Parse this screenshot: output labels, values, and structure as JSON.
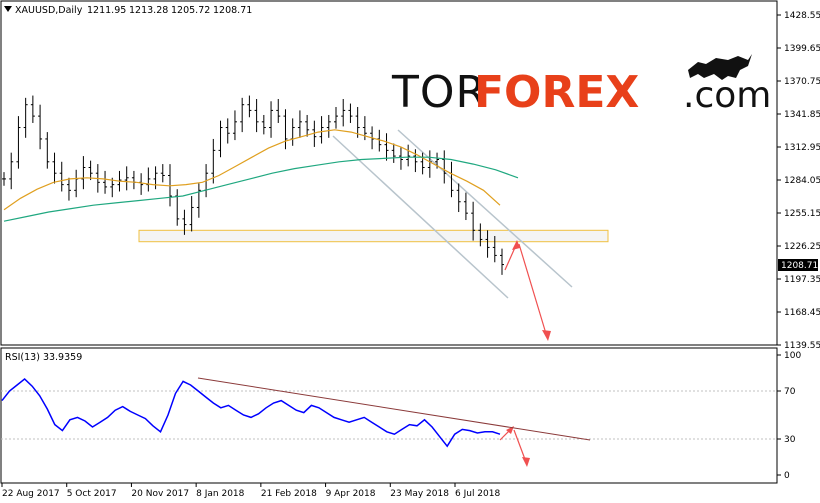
{
  "header": {
    "symbol": "XAUUSD,Daily",
    "open": "1211.95",
    "high": "1213.28",
    "low": "1205.72",
    "close": "1208.71"
  },
  "logo": {
    "part1": "TOR",
    "part2": "FOREX",
    "part3": ".com"
  },
  "current_price_tag": "1208.71",
  "colors": {
    "candles": "#000000",
    "ma_fast": "#e0a020",
    "ma_slow": "#20a880",
    "zone_fill": "#f4f4f4",
    "zone_border": "#f0c040",
    "channel": "#b8c4cc",
    "arrow": "#f05050",
    "rsi_line": "#0000ff",
    "rsi_trend": "#8b3a3a",
    "logo_accent": "#e8401a"
  },
  "chart_data": [
    {
      "type": "line",
      "candles_style": "ohlc-bars",
      "price_axis": [
        "1428.55",
        "1399.65",
        "1370.75",
        "1341.85",
        "1312.95",
        "1284.05",
        "1255.15",
        "1226.25",
        "1197.35",
        "1168.45",
        "1139.55"
      ],
      "x_axis": [
        "22 Aug 2017",
        "5 Oct 2017",
        "20 Nov 2017",
        "8 Jan 2018",
        "21 Feb 2018",
        "9 Apr 2018",
        "23 May 2018",
        "6 Jul 2018"
      ],
      "ylim": [
        1139.55,
        1428.55
      ],
      "price_series": [
        1285,
        1300,
        1330,
        1350,
        1340,
        1320,
        1300,
        1290,
        1280,
        1275,
        1285,
        1295,
        1290,
        1282,
        1278,
        1280,
        1284,
        1286,
        1282,
        1280,
        1285,
        1290,
        1288,
        1270,
        1250,
        1245,
        1260,
        1275,
        1290,
        1310,
        1330,
        1325,
        1335,
        1350,
        1345,
        1335,
        1330,
        1345,
        1340,
        1320,
        1330,
        1335,
        1328,
        1322,
        1330,
        1335,
        1340,
        1345,
        1340,
        1330,
        1325,
        1320,
        1315,
        1310,
        1305,
        1302,
        1305,
        1300,
        1295,
        1300,
        1302,
        1290,
        1275,
        1265,
        1255,
        1240,
        1232,
        1225,
        1218,
        1210
      ],
      "sma_fast": [
        1258,
        1268,
        1276,
        1282,
        1285,
        1286,
        1285,
        1283,
        1282,
        1280,
        1279,
        1280,
        1282,
        1288,
        1296,
        1304,
        1312,
        1318,
        1322,
        1326,
        1328,
        1326,
        1322,
        1318,
        1313,
        1306,
        1298,
        1290,
        1283,
        1275,
        1262
      ],
      "sma_slow": [
        1248,
        1252,
        1256,
        1259,
        1262,
        1264,
        1266,
        1268,
        1270,
        1275,
        1280,
        1285,
        1290,
        1294,
        1297,
        1300,
        1302,
        1303,
        1304,
        1304,
        1302,
        1298,
        1293,
        1286
      ],
      "support_zone": [
        1230,
        1240
      ]
    },
    {
      "type": "line",
      "title": "RSI(13) 33.9359",
      "levels": [
        100,
        70,
        30,
        0
      ],
      "ylim": [
        0,
        100
      ],
      "rsi_series": [
        62,
        70,
        75,
        80,
        74,
        66,
        55,
        42,
        37,
        46,
        48,
        45,
        40,
        44,
        48,
        54,
        57,
        53,
        50,
        47,
        41,
        36,
        50,
        68,
        78,
        75,
        70,
        65,
        60,
        56,
        58,
        54,
        50,
        48,
        51,
        56,
        60,
        62,
        58,
        54,
        52,
        58,
        56,
        52,
        48,
        46,
        44,
        46,
        48,
        44,
        40,
        36,
        34,
        38,
        42,
        41,
        46,
        40,
        32,
        24,
        34,
        38,
        37,
        35,
        36,
        36,
        34
      ]
    }
  ]
}
